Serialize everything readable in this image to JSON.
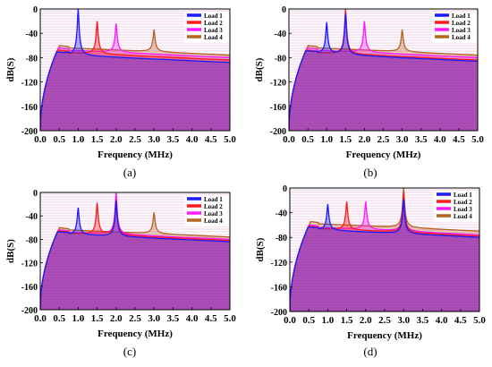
{
  "chart_data": [
    {
      "type": "line",
      "panel_label": "(a)",
      "xlabel": "Frequency (MHz)",
      "ylabel": "dB(S)",
      "xlim": [
        0,
        5
      ],
      "ylim": [
        -200,
        0
      ],
      "x_ticks": [
        "0.0",
        "0.5",
        "1.0",
        "1.5",
        "2.0",
        "2.5",
        "3.0",
        "3.5",
        "4.0",
        "4.5",
        "5.0"
      ],
      "y_ticks": [
        "0",
        "-40",
        "-80",
        "-120",
        "-160",
        "-200"
      ],
      "legend_position": "top-right",
      "series": [
        {
          "name": "Load 1",
          "color": "#1a1aff",
          "peaks": [
            {
              "f": 1.0,
              "db": 0
            }
          ],
          "tail_db": -84
        },
        {
          "name": "Load 2",
          "color": "#ff1a1a",
          "peaks": [
            {
              "f": 1.5,
              "db": -20
            }
          ],
          "tail_db": -80
        },
        {
          "name": "Load 3",
          "color": "#ff1aff",
          "peaks": [
            {
              "f": 2.0,
              "db": -24
            }
          ],
          "tail_db": -76
        },
        {
          "name": "Load 4",
          "color": "#b5651d",
          "peaks": [
            {
              "f": 3.0,
              "db": -34
            }
          ],
          "tail_db": -72
        }
      ]
    },
    {
      "type": "line",
      "panel_label": "(b)",
      "xlabel": "Frequency (MHz)",
      "ylabel": "dB(S)",
      "xlim": [
        0,
        5
      ],
      "ylim": [
        -200,
        0
      ],
      "x_ticks": [
        "0.0",
        "0.5",
        "1.0",
        "1.5",
        "2.0",
        "2.5",
        "3.0",
        "3.5",
        "4.0",
        "4.5",
        "5.0"
      ],
      "y_ticks": [
        "0",
        "-40",
        "-80",
        "-120",
        "-160",
        "-200"
      ],
      "legend_position": "top-right",
      "series": [
        {
          "name": "Load 1",
          "color": "#1a1aff",
          "peaks": [
            {
              "f": 1.0,
              "db": -22
            },
            {
              "f": 1.5,
              "db": -8
            }
          ],
          "tail_db": -82
        },
        {
          "name": "Load 2",
          "color": "#ff1a1a",
          "peaks": [
            {
              "f": 1.5,
              "db": 0
            }
          ],
          "tail_db": -80
        },
        {
          "name": "Load 3",
          "color": "#ff1aff",
          "peaks": [
            {
              "f": 2.0,
              "db": -20
            }
          ],
          "tail_db": -76
        },
        {
          "name": "Load 4",
          "color": "#b5651d",
          "peaks": [
            {
              "f": 3.0,
              "db": -34
            }
          ],
          "tail_db": -72
        }
      ]
    },
    {
      "type": "line",
      "panel_label": "(c)",
      "xlabel": "Frequency (MHz)",
      "ylabel": "dB(S)",
      "xlim": [
        0,
        5
      ],
      "ylim": [
        -200,
        0
      ],
      "x_ticks": [
        "0.0",
        "0.5",
        "1.0",
        "1.5",
        "2.0",
        "2.5",
        "3.0",
        "3.5",
        "4.0",
        "4.5",
        "5.0"
      ],
      "y_ticks": [
        "0",
        "-40",
        "-80",
        "-120",
        "-160",
        "-200"
      ],
      "legend_position": "top-right",
      "series": [
        {
          "name": "Load 1",
          "color": "#1a1aff",
          "peaks": [
            {
              "f": 1.0,
              "db": -26
            },
            {
              "f": 2.0,
              "db": -14
            }
          ],
          "tail_db": -80
        },
        {
          "name": "Load 2",
          "color": "#ff1a1a",
          "peaks": [
            {
              "f": 1.5,
              "db": -18
            },
            {
              "f": 2.0,
              "db": -12
            }
          ],
          "tail_db": -78
        },
        {
          "name": "Load 3",
          "color": "#ff1aff",
          "peaks": [
            {
              "f": 2.0,
              "db": 0
            }
          ],
          "tail_db": -76
        },
        {
          "name": "Load 4",
          "color": "#b5651d",
          "peaks": [
            {
              "f": 3.0,
              "db": -34
            }
          ],
          "tail_db": -72
        }
      ]
    },
    {
      "type": "line",
      "panel_label": "(d)",
      "xlabel": "Frequency (MHz)",
      "ylabel": "dB(S)",
      "xlim": [
        0,
        5
      ],
      "ylim": [
        -200,
        0
      ],
      "x_ticks": [
        "0.0",
        "0.5",
        "1.0",
        "1.5",
        "2.0",
        "2.5",
        "3.0",
        "3.5",
        "4.0",
        "4.5",
        "5.0"
      ],
      "y_ticks": [
        "0",
        "-40",
        "-80",
        "-120",
        "-160",
        "-200"
      ],
      "legend_position": "top-right",
      "series": [
        {
          "name": "Load 1",
          "color": "#1a1aff",
          "peaks": [
            {
              "f": 1.0,
              "db": -26
            },
            {
              "f": 3.0,
              "db": -18
            }
          ],
          "tail_db": -76
        },
        {
          "name": "Load 2",
          "color": "#ff1a1a",
          "peaks": [
            {
              "f": 1.5,
              "db": -22
            },
            {
              "f": 3.0,
              "db": -8
            }
          ],
          "tail_db": -74
        },
        {
          "name": "Load 3",
          "color": "#ff1aff",
          "peaks": [
            {
              "f": 2.0,
              "db": -22
            },
            {
              "f": 3.0,
              "db": -14
            }
          ],
          "tail_db": -72
        },
        {
          "name": "Load 4",
          "color": "#b5651d",
          "peaks": [
            {
              "f": 3.0,
              "db": 0
            }
          ],
          "tail_db": -66
        }
      ]
    }
  ]
}
